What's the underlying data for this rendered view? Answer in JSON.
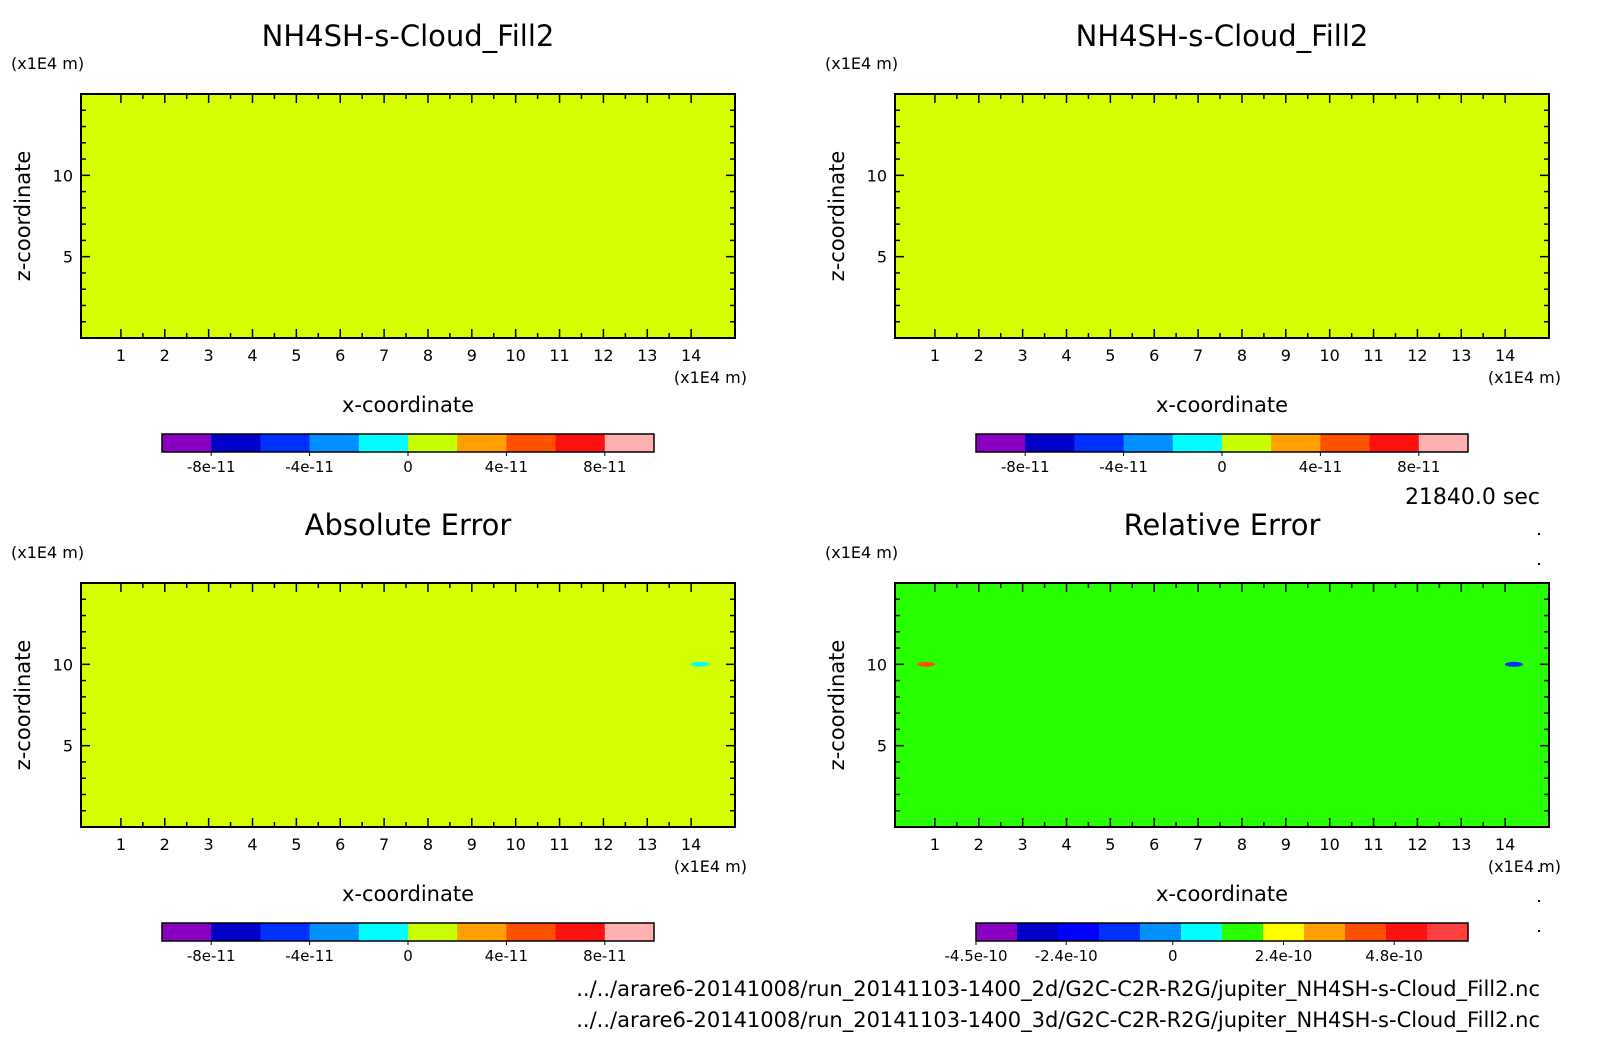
{
  "time_label": "21840.0 sec",
  "files": [
    "../../arare6-20141008/run_20141103-1400_2d/G2C-C2R-R2G/jupiter_NH4SH-s-Cloud_Fill2.nc",
    "../../arare6-20141008/run_20141103-1400_3d/G2C-C2R-R2G/jupiter_NH4SH-s-Cloud_Fill2.nc"
  ],
  "chart_data": [
    {
      "type": "heatmap",
      "title": "NH4SH-s-Cloud_Fill2",
      "xlabel": "x-coordinate",
      "ylabel": "z-coordinate",
      "x_unit": "(x1E4 m)",
      "y_unit": "(x1E4 m)",
      "xlim": [
        0.09,
        15.0
      ],
      "ylim": [
        0.0,
        15.0
      ],
      "xticks": [
        "1",
        "2",
        "3",
        "4",
        "5",
        "6",
        "7",
        "8",
        "9",
        "10",
        "11",
        "12",
        "13",
        "14"
      ],
      "yticks": [
        "5",
        "10"
      ],
      "field_color": "#d4ff00",
      "features": [],
      "colorbar": {
        "colors": [
          "#8a00c0",
          "#0000c8",
          "#0030ff",
          "#0090ff",
          "#00ffff",
          "#c8ff00",
          "#ffa000",
          "#ff5000",
          "#ff1010",
          "#ffb0b0"
        ],
        "labels": [
          "-8e-11",
          "-4e-11",
          "0",
          "4e-11",
          "8e-11"
        ],
        "label_positions": [
          1,
          3,
          5,
          7,
          9
        ]
      }
    },
    {
      "type": "heatmap",
      "title": "NH4SH-s-Cloud_Fill2",
      "xlabel": "x-coordinate",
      "ylabel": "z-coordinate",
      "x_unit": "(x1E4 m)",
      "y_unit": "(x1E4 m)",
      "xlim": [
        0.09,
        15.0
      ],
      "ylim": [
        0.0,
        15.0
      ],
      "xticks": [
        "1",
        "2",
        "3",
        "4",
        "5",
        "6",
        "7",
        "8",
        "9",
        "10",
        "11",
        "12",
        "13",
        "14"
      ],
      "yticks": [
        "5",
        "10"
      ],
      "field_color": "#d4ff00",
      "features": [],
      "colorbar": {
        "colors": [
          "#8a00c0",
          "#0000c8",
          "#0030ff",
          "#0090ff",
          "#00ffff",
          "#c8ff00",
          "#ffa000",
          "#ff5000",
          "#ff1010",
          "#ffb0b0"
        ],
        "labels": [
          "-8e-11",
          "-4e-11",
          "0",
          "4e-11",
          "8e-11"
        ],
        "label_positions": [
          1,
          3,
          5,
          7,
          9
        ]
      }
    },
    {
      "type": "heatmap",
      "title": "Absolute Error",
      "xlabel": "x-coordinate",
      "ylabel": "z-coordinate",
      "x_unit": "(x1E4 m)",
      "y_unit": "(x1E4 m)",
      "xlim": [
        0.09,
        15.0
      ],
      "ylim": [
        0.0,
        15.0
      ],
      "xticks": [
        "1",
        "2",
        "3",
        "4",
        "5",
        "6",
        "7",
        "8",
        "9",
        "10",
        "11",
        "12",
        "13",
        "14"
      ],
      "yticks": [
        "5",
        "10"
      ],
      "field_color": "#d4ff00",
      "features": [
        {
          "x": 14.2,
          "z": 10.0,
          "color": "#00ffff"
        }
      ],
      "colorbar": {
        "colors": [
          "#8a00c0",
          "#0000c8",
          "#0030ff",
          "#0090ff",
          "#00ffff",
          "#c8ff00",
          "#ffa000",
          "#ff5000",
          "#ff1010",
          "#ffb0b0"
        ],
        "labels": [
          "-8e-11",
          "-4e-11",
          "0",
          "4e-11",
          "8e-11"
        ],
        "label_positions": [
          1,
          3,
          5,
          7,
          9
        ]
      }
    },
    {
      "type": "heatmap",
      "title": "Relative Error",
      "xlabel": "x-coordinate",
      "ylabel": "z-coordinate",
      "x_unit": "(x1E4 m)",
      "y_unit": "(x1E4 m)",
      "xlim": [
        0.09,
        15.0
      ],
      "ylim": [
        0.0,
        15.0
      ],
      "xticks": [
        "1",
        "2",
        "3",
        "4",
        "5",
        "6",
        "7",
        "8",
        "9",
        "10",
        "11",
        "12",
        "13",
        "14"
      ],
      "yticks": [
        "5",
        "10"
      ],
      "field_color": "#28ff00",
      "features": [
        {
          "x": 0.8,
          "z": 10.0,
          "color": "#ff5000"
        },
        {
          "x": 14.2,
          "z": 10.0,
          "color": "#0030ff"
        }
      ],
      "colorbar": {
        "colors": [
          "#8a00c0",
          "#0000c8",
          "#0000ff",
          "#0030ff",
          "#0090ff",
          "#00ffff",
          "#28ff00",
          "#ffff00",
          "#ffa000",
          "#ff5000",
          "#ff1010",
          "#ff4040"
        ],
        "labels": [
          "-4.5e-10",
          "-2.4e-10",
          "0",
          "2.4e-10",
          "4.8e-10"
        ],
        "label_positions": [
          0,
          2.2,
          4.8,
          7.5,
          10.2
        ]
      }
    }
  ]
}
